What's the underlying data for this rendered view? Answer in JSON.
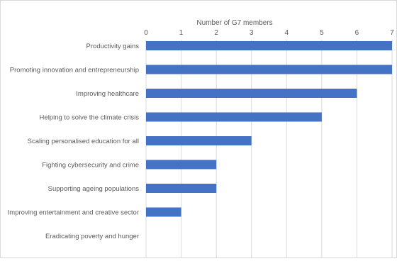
{
  "chart_data": {
    "type": "bar",
    "orientation": "horizontal",
    "xlabel": "Number of G7 members",
    "xlabel_position": "top",
    "xlim": [
      0,
      7
    ],
    "xticks": [
      0,
      1,
      2,
      3,
      4,
      5,
      6,
      7
    ],
    "grid": "vertical",
    "legend": "none",
    "bar_color": "#4472c4",
    "grid_color": "#d9d9d9",
    "categories": [
      "Productivity gains",
      "Promoting innovation and entrepreneurship",
      "Improving healthcare",
      "Helping to solve the climate crisis",
      "Scaling personalised education for all",
      "Fighting cybersecurity and crime",
      "Supporting ageing populations",
      "Improving entertainment and creative sector",
      "Eradicating poverty and hunger"
    ],
    "values": [
      7,
      7,
      6,
      5,
      3,
      2,
      2,
      1,
      0
    ]
  }
}
